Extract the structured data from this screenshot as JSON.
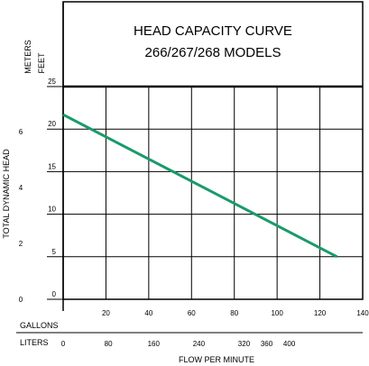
{
  "title_line1": "HEAD CAPACITY CURVE",
  "title_line2": "266/267/268 MODELS",
  "ylabel": "TOTAL DYNAMIC HEAD",
  "xlabel": "FLOW PER MINUTE",
  "units": {
    "meters": "METERS",
    "feet": "FEET",
    "gallons": "GALLONS",
    "liters": "LITERS"
  },
  "colors": {
    "line": "#1a9a6a",
    "grid": "#000000",
    "background": "#ffffff"
  },
  "chart_data": {
    "type": "line",
    "title": "HEAD CAPACITY CURVE 266/267/268 MODELS",
    "xlabel": "FLOW PER MINUTE",
    "ylabel": "TOTAL DYNAMIC HEAD",
    "x_unit": "GALLONS",
    "y_unit": "FEET",
    "xlim": [
      0,
      140
    ],
    "ylim": [
      0,
      25
    ],
    "grid": true,
    "x_ticks_gallons": [
      "20",
      "40",
      "60",
      "80",
      "100",
      "120",
      "140"
    ],
    "x_ticks_liters": [
      "0",
      "80",
      "160",
      "240",
      "320",
      "360",
      "400"
    ],
    "y_ticks_feet": [
      "0",
      "5",
      "10",
      "15",
      "20",
      "25"
    ],
    "y_ticks_meters": [
      "0",
      "2",
      "4",
      "6"
    ],
    "series": [
      {
        "x": [
          0,
          128
        ],
        "y": [
          21.7,
          5.0
        ]
      }
    ]
  }
}
